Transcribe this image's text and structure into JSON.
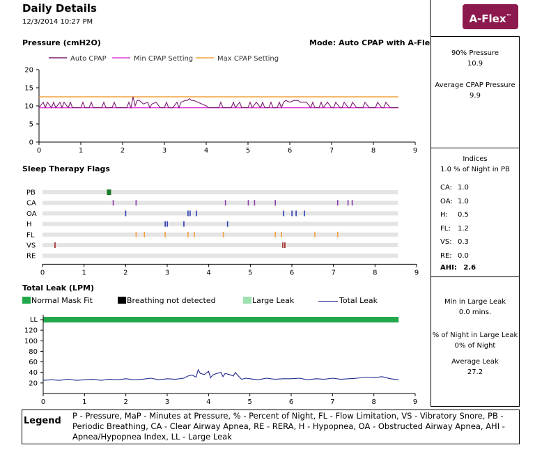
{
  "header": {
    "title": "Daily Details",
    "datetime": "12/3/2014 10:27 PM",
    "badge": "A-Flex",
    "badge_mark": "™",
    "badge_color": "#8c1a4f"
  },
  "pressure_panel": {
    "section_title": "Pressure (cmH2O)",
    "mode": "Mode: Auto CPAP with A-Flex"
  },
  "flags_panel": {
    "section_title": "Sleep Therapy Flags"
  },
  "leak_panel": {
    "section_title": "Total Leak (LPM)",
    "keys": [
      {
        "label": "Normal Mask Fit",
        "color": "#22a84a"
      },
      {
        "label": "Breathing not detected",
        "color": "#000000"
      },
      {
        "label": "Large Leak",
        "color": "#9ee0b0"
      },
      {
        "label": "Total Leak",
        "color": "#1f2a8c"
      }
    ]
  },
  "side": {
    "pressure": {
      "p90_label": "90% Pressure",
      "p90_value": "10.9",
      "avg_label": "Average CPAP Pressure",
      "avg_value": "9.9"
    },
    "indices": {
      "title": "Indices",
      "pb_line": "1.0 % of Night in PB",
      "rows": [
        {
          "label": "CA:",
          "value": "1.0"
        },
        {
          "label": "OA:",
          "value": "1.0"
        },
        {
          "label": "H:",
          "value": "0.5"
        },
        {
          "label": "FL:",
          "value": "1.2"
        },
        {
          "label": "VS:",
          "value": "0.3"
        },
        {
          "label": "RE:",
          "value": "0.0"
        }
      ],
      "ahi_label": "AHI:",
      "ahi_value": "2.6"
    },
    "leak": {
      "min_label": "Min in Large Leak",
      "min_value": "0.0 mins.",
      "pct_label": "% of Night in Large Leak",
      "pct_value": "0% of Night",
      "avg_label": "Average Leak",
      "avg_value": "27.2"
    }
  },
  "legend": {
    "title": "Legend",
    "text": "P - Pressure, MaP - Minutes at Pressure, % - Percent of Night, FL - Flow Limitation, VS - Vibratory Snore, PB - Periodic Breathing, CA - Clear Airway Apnea, RE - RERA, H - Hypopnea, OA - Obstructed Airway Apnea, AHI - Apnea/Hypopnea Index, LL - Large Leak"
  },
  "chart_data": [
    {
      "type": "line",
      "x_ticks": [
        0,
        1,
        2,
        3,
        4,
        5,
        6,
        7,
        8,
        9
      ],
      "y_ticks": [
        0,
        5,
        10,
        15,
        20
      ],
      "xlim": [
        0,
        9
      ],
      "ylim": [
        0,
        20
      ],
      "grid": false,
      "legend_position": "top",
      "series": [
        {
          "name": "Auto CPAP",
          "color": "#7a1f70",
          "x": [
            0,
            0.1,
            0.15,
            0.2,
            0.3,
            0.35,
            0.4,
            0.5,
            0.55,
            0.6,
            0.7,
            0.75,
            0.8,
            0.9,
            1.0,
            1.05,
            1.1,
            1.2,
            1.25,
            1.3,
            1.4,
            1.5,
            1.55,
            1.6,
            1.75,
            1.8,
            1.85,
            2.0,
            2.1,
            2.15,
            2.2,
            2.25,
            2.3,
            2.35,
            2.4,
            2.5,
            2.6,
            2.65,
            2.7,
            2.8,
            2.9,
            3.0,
            3.05,
            3.1,
            3.2,
            3.3,
            3.35,
            3.4,
            3.5,
            3.55,
            3.6,
            3.65,
            3.7,
            3.8,
            3.9,
            4.0,
            4.05,
            4.1,
            4.2,
            4.3,
            4.35,
            4.4,
            4.5,
            4.6,
            4.65,
            4.7,
            4.8,
            4.85,
            4.9,
            5.0,
            5.05,
            5.1,
            5.2,
            5.3,
            5.35,
            5.4,
            5.5,
            5.55,
            5.6,
            5.7,
            5.75,
            5.8,
            5.85,
            5.9,
            6.0,
            6.1,
            6.2,
            6.25,
            6.3,
            6.4,
            6.5,
            6.55,
            6.6,
            6.7,
            6.75,
            6.8,
            6.9,
            7.0,
            7.05,
            7.1,
            7.2,
            7.25,
            7.3,
            7.4,
            7.45,
            7.5,
            7.6,
            7.7,
            7.75,
            7.8,
            7.9,
            8.0,
            8.05,
            8.1,
            8.2,
            8.25,
            8.3,
            8.4,
            8.5,
            8.6
          ],
          "y": [
            9.5,
            11,
            9.5,
            11,
            9.5,
            11,
            9.5,
            11,
            9.5,
            11,
            9.5,
            11,
            9.5,
            9.5,
            9.5,
            11,
            9.5,
            9.5,
            11,
            9.5,
            9.5,
            9.5,
            11,
            9.5,
            9.5,
            11,
            9.5,
            9.5,
            9.5,
            11,
            9.5,
            12.5,
            10,
            11.5,
            11.5,
            10.5,
            11,
            9.5,
            10.5,
            11,
            9.5,
            9.5,
            11,
            9.5,
            9.5,
            11,
            9.5,
            11,
            11.5,
            11.5,
            12,
            11.5,
            11.5,
            11,
            10.5,
            10,
            9.5,
            9.5,
            9.5,
            9.5,
            11,
            9.5,
            9.5,
            9.5,
            11,
            9.5,
            11,
            9.5,
            9.5,
            9.5,
            11,
            9.5,
            11,
            9.5,
            11,
            9.5,
            9.5,
            11,
            9.5,
            9.5,
            11,
            9.5,
            11,
            11.5,
            11,
            11.5,
            11.5,
            11,
            11,
            11,
            9.5,
            11,
            9.5,
            9.5,
            11,
            9.5,
            11,
            9.5,
            9.5,
            11,
            9.5,
            9.5,
            11,
            9.5,
            9.5,
            11,
            9.5,
            9.5,
            9.5,
            11,
            9.5,
            9.5,
            9.5,
            11,
            9.5,
            9.5,
            11,
            9.5,
            9.5,
            9.5
          ]
        },
        {
          "name": "Min CPAP Setting",
          "color": "#e23ad9",
          "x": [
            0,
            8.6
          ],
          "y": [
            9.5,
            9.5
          ]
        },
        {
          "name": "Max CPAP Setting",
          "color": "#f2a23a",
          "x": [
            0,
            8.6
          ],
          "y": [
            12.5,
            12.5
          ]
        }
      ]
    },
    {
      "type": "scatter",
      "x_ticks": [
        0,
        1,
        2,
        3,
        4,
        5,
        6,
        7,
        8,
        9
      ],
      "xlim": [
        0,
        9
      ],
      "rows": [
        {
          "label": "PB",
          "color": "#1a7a2a",
          "events": [
            1.6
          ]
        },
        {
          "label": "CA",
          "color": "#8a3aa8",
          "events": [
            1.7,
            2.25,
            4.4,
            4.95,
            5.1,
            5.6,
            7.1,
            7.35,
            7.45
          ]
        },
        {
          "label": "OA",
          "color": "#2a3ab0",
          "events": [
            2.0,
            3.5,
            3.55,
            3.7,
            5.8,
            6.0,
            6.1,
            6.3
          ]
        },
        {
          "label": "H",
          "color": "#2a3ab0",
          "events": [
            2.95,
            3.0,
            3.4,
            4.45
          ]
        },
        {
          "label": "FL",
          "color": "#f0a040",
          "events": [
            2.25,
            2.45,
            2.95,
            3.5,
            3.65,
            4.35,
            5.6,
            5.75,
            6.55,
            7.1
          ]
        },
        {
          "label": "VS",
          "color": "#a02020",
          "events": [
            0.3,
            5.78,
            5.83
          ]
        },
        {
          "label": "RE",
          "color": "#888888",
          "events": []
        }
      ]
    },
    {
      "type": "line",
      "x_ticks": [
        0,
        1,
        2,
        3,
        4,
        5,
        6,
        7,
        8,
        9
      ],
      "y_tick_labels": [
        "LL",
        "120",
        "100",
        "80",
        "60",
        "40",
        "20"
      ],
      "y_ticks": [
        20,
        40,
        60,
        80,
        100,
        120
      ],
      "xlim": [
        0,
        9
      ],
      "ylim": [
        0,
        140
      ],
      "large_leak_band": {
        "x_start": 0,
        "x_end": 8.6,
        "status": "Normal Mask Fit"
      },
      "series": [
        {
          "name": "Total Leak",
          "color": "#1f2a8c",
          "x": [
            0,
            0.2,
            0.4,
            0.6,
            0.8,
            1.0,
            1.2,
            1.4,
            1.6,
            1.8,
            2.0,
            2.2,
            2.4,
            2.6,
            2.8,
            3.0,
            3.2,
            3.4,
            3.5,
            3.6,
            3.7,
            3.75,
            3.8,
            3.9,
            4.0,
            4.05,
            4.1,
            4.2,
            4.3,
            4.35,
            4.4,
            4.5,
            4.6,
            4.65,
            4.7,
            4.8,
            4.9,
            5.0,
            5.2,
            5.4,
            5.6,
            5.8,
            6.0,
            6.2,
            6.4,
            6.6,
            6.8,
            7.0,
            7.2,
            7.4,
            7.6,
            7.8,
            8.0,
            8.2,
            8.4,
            8.6
          ],
          "y": [
            25,
            26,
            25,
            27,
            25,
            26,
            27,
            25,
            27,
            26,
            28,
            26,
            27,
            29,
            26,
            28,
            27,
            29,
            33,
            35,
            31,
            45,
            38,
            36,
            42,
            30,
            35,
            38,
            40,
            32,
            38,
            36,
            33,
            40,
            35,
            27,
            29,
            28,
            26,
            29,
            27,
            28,
            28,
            29,
            26,
            28,
            27,
            29,
            27,
            28,
            29,
            31,
            30,
            32,
            28,
            26
          ]
        }
      ]
    }
  ]
}
